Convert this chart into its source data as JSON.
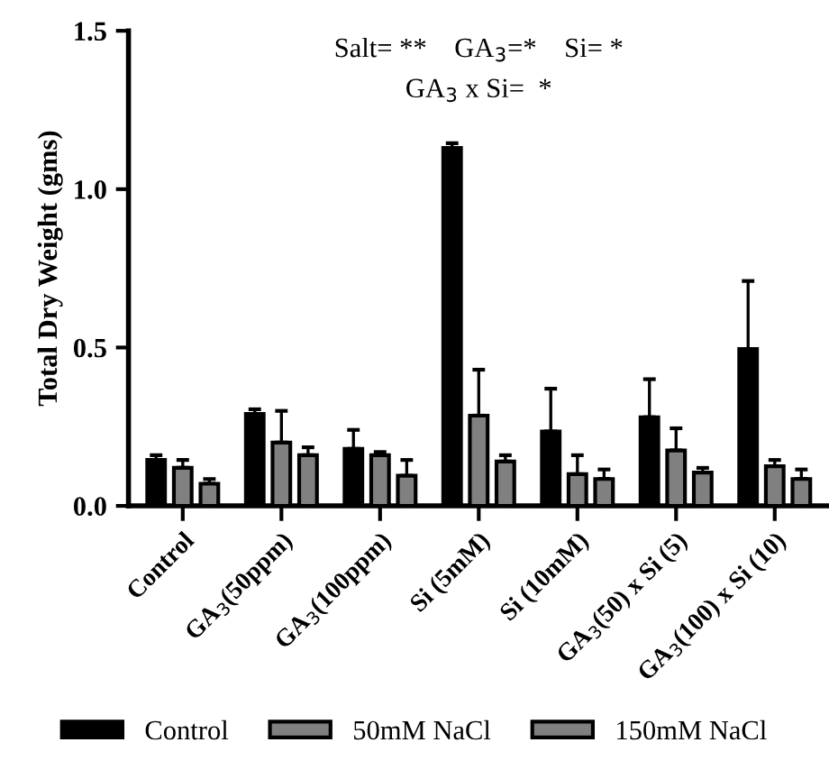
{
  "chart_data": {
    "type": "bar",
    "ylabel": "Total Dry Weight (gms)",
    "categories": [
      "Control",
      "GA$_{3}$(50ppm)",
      "GA$_{3}$(100ppm)",
      "Si (5mM)",
      "Si (10mM)",
      "GA$_{3}$(50) x Si (5)",
      "GA$_{3}$(100) x Si (10)"
    ],
    "series": [
      {
        "name": "Control",
        "color": "#000000",
        "values": [
          0.145,
          0.29,
          0.18,
          1.13,
          0.235,
          0.28,
          0.495
        ],
        "errors": [
          [
            0.145,
            0.16
          ],
          [
            0.29,
            0.305
          ],
          [
            0.18,
            0.24
          ],
          [
            1.13,
            1.145
          ],
          [
            0.235,
            0.37
          ],
          [
            0.28,
            0.4
          ],
          [
            0.495,
            0.71
          ]
        ]
      },
      {
        "name": "50mM NaCl",
        "color": "#808080",
        "values": [
          0.12,
          0.2,
          0.16,
          0.285,
          0.1,
          0.175,
          0.125
        ],
        "errors": [
          [
            0.12,
            0.145
          ],
          [
            0.2,
            0.3
          ],
          [
            0.16,
            0.17
          ],
          [
            0.285,
            0.43
          ],
          [
            0.1,
            0.16
          ],
          [
            0.175,
            0.245
          ],
          [
            0.125,
            0.145
          ]
        ]
      },
      {
        "name": "150mM NaCl",
        "color": "#808080",
        "values": [
          0.07,
          0.16,
          0.095,
          0.14,
          0.085,
          0.105,
          0.085
        ],
        "errors": [
          [
            0.07,
            0.085
          ],
          [
            0.16,
            0.185
          ],
          [
            0.095,
            0.145
          ],
          [
            0.14,
            0.16
          ],
          [
            0.085,
            0.115
          ],
          [
            0.105,
            0.12
          ],
          [
            0.085,
            0.115
          ]
        ]
      }
    ],
    "ylim": [
      0,
      1.5
    ],
    "yticks": [
      {
        "value": 0,
        "label": "0.0"
      },
      {
        "value": 0.5,
        "label": "0.5"
      },
      {
        "value": 1,
        "label": "1.0"
      },
      {
        "value": 1.5,
        "label": "1.5"
      }
    ],
    "annotations": [
      "Salt= **    GA$_{3}$=*    Si= *",
      "GA$_{3}$ x Si=  *"
    ],
    "grid": false,
    "legend": "bottom"
  }
}
